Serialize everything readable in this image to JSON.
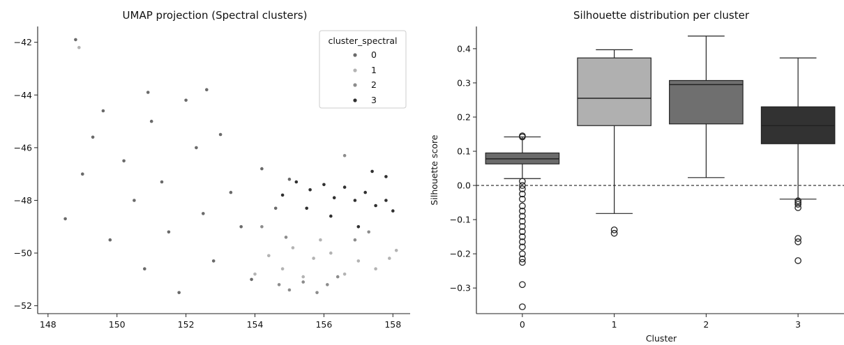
{
  "colors": {
    "cluster_0": "#6a6a6a",
    "cluster_1": "#b3b3b3",
    "cluster_2": "#8c8c8c",
    "cluster_3": "#303030",
    "box_0": "#6b6b6b",
    "box_1": "#b0b0b0",
    "box_2": "#6f6f6f",
    "box_3": "#323232"
  },
  "chart_data": [
    {
      "type": "scatter",
      "title": "UMAP projection (Spectral clusters)",
      "xlabel": "",
      "ylabel": "",
      "xlim": [
        147.7,
        158.5
      ],
      "ylim": [
        -52.3,
        -41.4
      ],
      "xticks": [
        148,
        150,
        152,
        154,
        156,
        158
      ],
      "yticks": [
        -42,
        -44,
        -46,
        -48,
        -50,
        -52
      ],
      "grid": false,
      "legend": {
        "title": "cluster_spectral",
        "placement": "top-right",
        "entries": [
          "0",
          "1",
          "2",
          "3"
        ]
      },
      "series": [
        {
          "name": "0",
          "points": [
            [
              148.5,
              -48.7
            ],
            [
              149.0,
              -47.0
            ],
            [
              149.3,
              -45.6
            ],
            [
              149.8,
              -49.5
            ],
            [
              150.2,
              -46.5
            ],
            [
              150.5,
              -48.0
            ],
            [
              150.8,
              -50.6
            ],
            [
              151.0,
              -45.0
            ],
            [
              151.3,
              -47.3
            ],
            [
              151.5,
              -49.2
            ],
            [
              151.8,
              -51.5
            ],
            [
              152.0,
              -44.2
            ],
            [
              152.3,
              -46.0
            ],
            [
              152.5,
              -48.5
            ],
            [
              152.8,
              -50.3
            ],
            [
              153.0,
              -45.5
            ],
            [
              153.3,
              -47.7
            ],
            [
              153.6,
              -49.0
            ],
            [
              153.9,
              -51.0
            ],
            [
              154.2,
              -46.8
            ],
            [
              149.6,
              -44.6
            ],
            [
              150.9,
              -43.9
            ],
            [
              152.6,
              -43.8
            ],
            [
              154.6,
              -48.3
            ],
            [
              155.0,
              -47.2
            ],
            [
              148.8,
              -41.9
            ]
          ]
        },
        {
          "name": "1",
          "points": [
            [
              154.4,
              -50.1
            ],
            [
              154.8,
              -50.6
            ],
            [
              155.1,
              -49.8
            ],
            [
              155.4,
              -50.9
            ],
            [
              155.7,
              -50.2
            ],
            [
              156.2,
              -50.0
            ],
            [
              156.6,
              -50.8
            ],
            [
              157.0,
              -50.3
            ],
            [
              157.5,
              -50.6
            ],
            [
              157.9,
              -50.2
            ],
            [
              154.0,
              -50.8
            ],
            [
              155.9,
              -49.5
            ],
            [
              158.1,
              -49.9
            ],
            [
              148.9,
              -42.2
            ]
          ]
        },
        {
          "name": "2",
          "points": [
            [
              154.7,
              -51.2
            ],
            [
              155.0,
              -51.4
            ],
            [
              155.4,
              -51.1
            ],
            [
              155.8,
              -51.5
            ],
            [
              156.1,
              -51.2
            ],
            [
              156.4,
              -50.9
            ],
            [
              154.2,
              -49.0
            ],
            [
              154.9,
              -49.4
            ],
            [
              156.9,
              -49.5
            ],
            [
              157.3,
              -49.2
            ],
            [
              156.6,
              -46.3
            ]
          ]
        },
        {
          "name": "3",
          "points": [
            [
              155.2,
              -47.3
            ],
            [
              155.6,
              -47.6
            ],
            [
              156.0,
              -47.4
            ],
            [
              156.3,
              -47.9
            ],
            [
              156.6,
              -47.5
            ],
            [
              156.9,
              -48.0
            ],
            [
              157.2,
              -47.7
            ],
            [
              157.5,
              -48.2
            ],
            [
              157.8,
              -48.0
            ],
            [
              158.0,
              -48.4
            ],
            [
              157.4,
              -46.9
            ],
            [
              157.8,
              -47.1
            ],
            [
              156.2,
              -48.6
            ],
            [
              157.0,
              -49.0
            ],
            [
              155.5,
              -48.3
            ],
            [
              154.8,
              -47.8
            ]
          ]
        }
      ]
    },
    {
      "type": "box",
      "title": "Silhouette distribution per cluster",
      "xlabel": "Cluster",
      "ylabel": "Silhouette score",
      "categories": [
        "0",
        "1",
        "2",
        "3"
      ],
      "ylim": [
        -0.375,
        0.465
      ],
      "yticks": [
        0.4,
        0.3,
        0.2,
        0.1,
        0.0,
        -0.1,
        -0.2,
        -0.3
      ],
      "ytick_labels": [
        "0.4",
        "0.3",
        "0.2",
        "0.1",
        "0.0",
        "−0.1",
        "−0.2",
        "−0.3"
      ],
      "reference_line": 0.0,
      "grid": false,
      "boxes": [
        {
          "category": "0",
          "whisker_low": 0.02,
          "q1": 0.063,
          "median": 0.078,
          "q3": 0.095,
          "whisker_high": 0.142,
          "outliers": [
            0.145,
            0.142,
            0.012,
            0.0,
            -0.01,
            -0.025,
            -0.04,
            -0.06,
            -0.075,
            -0.09,
            -0.105,
            -0.12,
            -0.135,
            -0.15,
            -0.165,
            -0.18,
            -0.2,
            -0.215,
            -0.225,
            -0.29,
            -0.355
          ]
        },
        {
          "category": "1",
          "whisker_low": -0.082,
          "q1": 0.175,
          "median": 0.255,
          "q3": 0.373,
          "whisker_high": 0.397,
          "outliers": [
            -0.13,
            -0.14
          ]
        },
        {
          "category": "2",
          "whisker_low": 0.023,
          "q1": 0.18,
          "median": 0.295,
          "q3": 0.307,
          "whisker_high": 0.437,
          "outliers": []
        },
        {
          "category": "3",
          "whisker_low": -0.04,
          "q1": 0.122,
          "median": 0.175,
          "q3": 0.23,
          "whisker_high": 0.373,
          "outliers": [
            -0.045,
            -0.05,
            -0.055,
            -0.065,
            -0.155,
            -0.165,
            -0.22
          ]
        }
      ]
    }
  ]
}
